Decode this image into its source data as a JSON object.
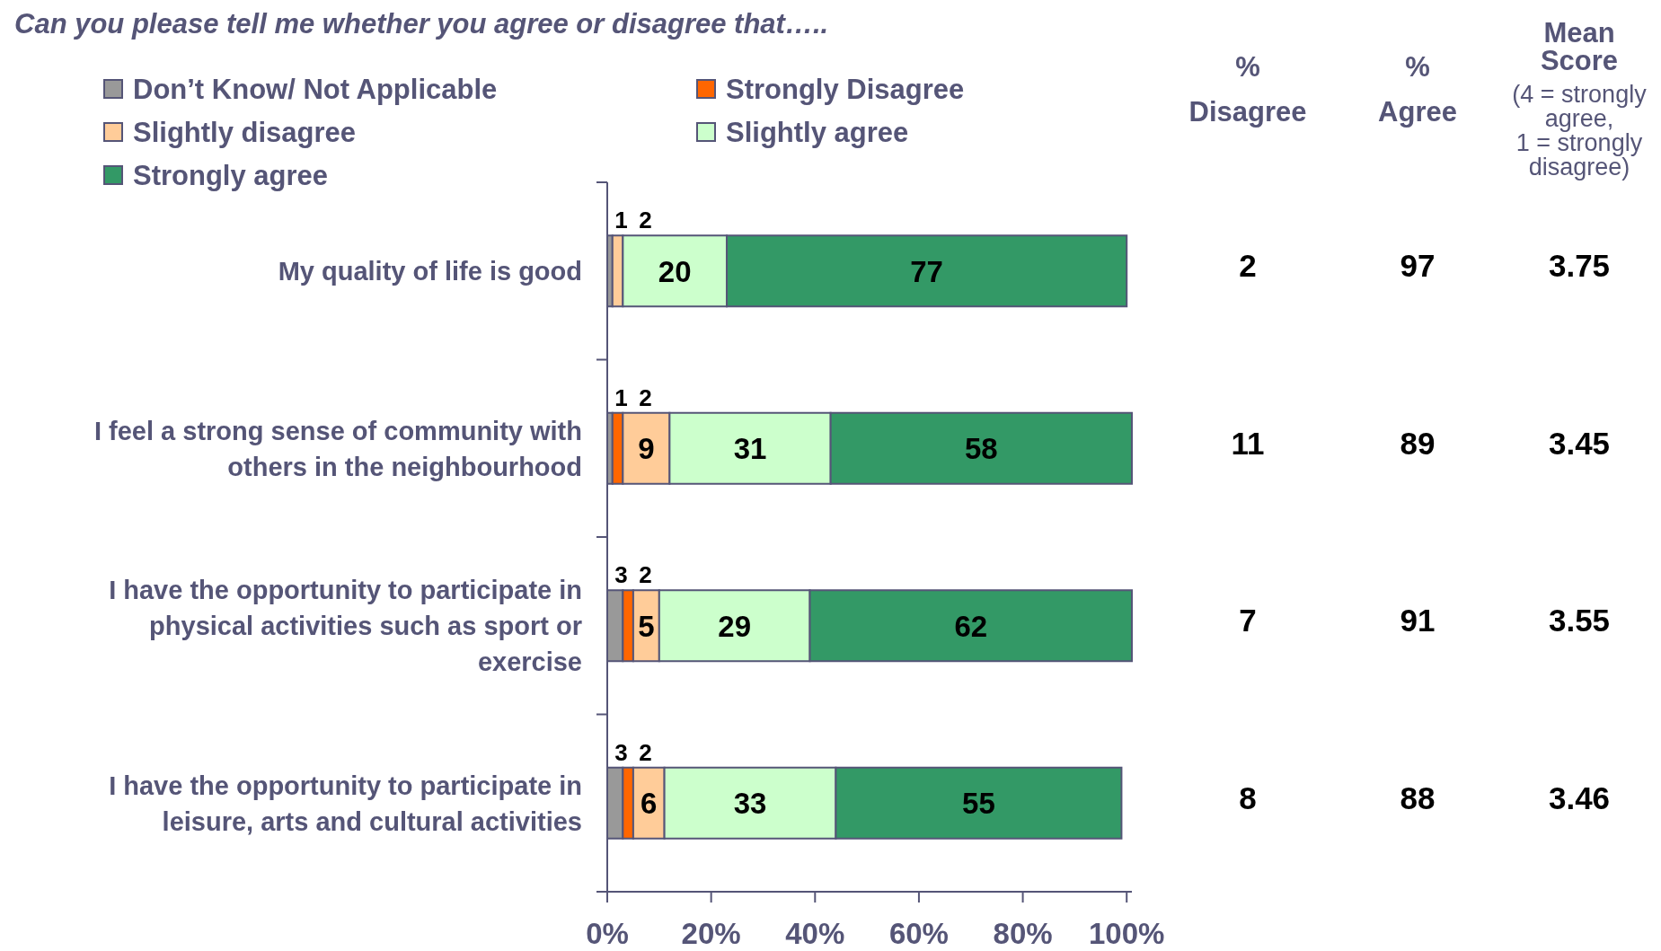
{
  "chart_data": {
    "type": "bar",
    "orientation": "horizontal",
    "stacked": true,
    "title": "Can you please tell me whether you agree or disagree that…..",
    "categories": [
      "My quality of life is good",
      "I feel a strong sense of community with others in the neighbourhood",
      "I have the opportunity to participate in physical activities such as sport or exercise",
      "I have the opportunity to participate in leisure, arts and cultural activities"
    ],
    "series": [
      {
        "name": "Don’t Know/ Not Applicable",
        "color": "#999999",
        "values": [
          1,
          1,
          3,
          3
        ],
        "value_labels": [
          "1",
          "1",
          "3",
          "3"
        ]
      },
      {
        "name": "Strongly Disagree",
        "color": "#ff6600",
        "values": [
          0,
          2,
          2,
          2
        ],
        "value_labels": [
          null,
          "2",
          "2",
          "2"
        ]
      },
      {
        "name": "Slightly disagree",
        "color": "#ffcc99",
        "values": [
          2,
          9,
          5,
          6
        ],
        "value_labels": [
          "2",
          "9",
          "5",
          "6"
        ]
      },
      {
        "name": "Slightly agree",
        "color": "#ccffcc",
        "values": [
          20,
          31,
          29,
          33
        ],
        "value_labels": [
          "20",
          "31",
          "29",
          "33"
        ]
      },
      {
        "name": "Strongly agree",
        "color": "#339966",
        "values": [
          77,
          58,
          62,
          55
        ],
        "value_labels": [
          "77",
          "58",
          "62",
          "55"
        ]
      }
    ],
    "xlim": [
      0,
      101
    ],
    "xticks": [
      {
        "value": 0,
        "label": "0%"
      },
      {
        "value": 20,
        "label": "20%"
      },
      {
        "value": 40,
        "label": "40%"
      },
      {
        "value": 60,
        "label": "60%"
      },
      {
        "value": 80,
        "label": "80%"
      },
      {
        "value": 100,
        "label": "100%"
      }
    ],
    "grid": false,
    "legend": "top left",
    "annotations": [
      "% Disagree",
      "% Agree",
      "Mean Score",
      "(4 = strongly agree, 1 = strongly disagree)",
      "2",
      "97",
      "3.75",
      "11",
      "89",
      "3.45",
      "7",
      "91",
      "3.55",
      "8",
      "88",
      "3.46"
    ]
  }
}
